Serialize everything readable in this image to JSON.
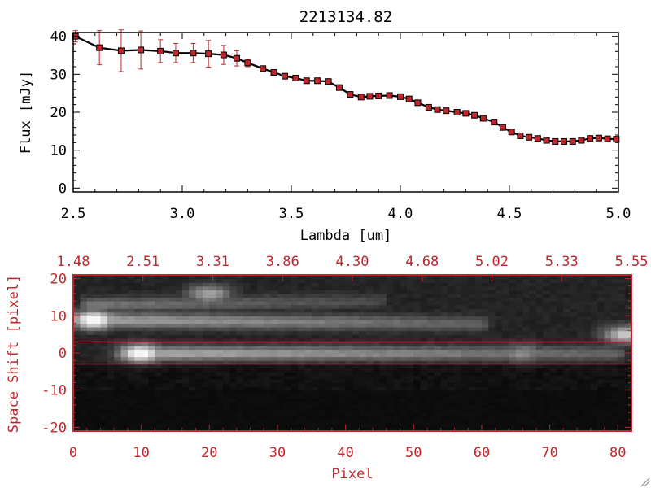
{
  "chart_data": [
    {
      "type": "line",
      "title": "2213134.82",
      "xlabel": "Lambda [um]",
      "ylabel": "Flux [mJy]",
      "xlim": [
        2.5,
        5.0
      ],
      "ylim": [
        -1,
        41
      ],
      "x_ticks": [
        "2.5",
        "3.0",
        "3.5",
        "4.0",
        "4.5",
        "5.0"
      ],
      "y_ticks": [
        "0",
        "10",
        "20",
        "30",
        "40"
      ],
      "line_color": "#000000",
      "marker_color": "#c0272d",
      "errorbar_color": "#c0272d",
      "series": [
        {
          "x": [
            2.51,
            2.62,
            2.72,
            2.81,
            2.9,
            2.97,
            3.05,
            3.12,
            3.19,
            3.25,
            3.3,
            3.37,
            3.42,
            3.47,
            3.52,
            3.57,
            3.62,
            3.67,
            3.72,
            3.77,
            3.82,
            3.86,
            3.9,
            3.95,
            4.0,
            4.04,
            4.08,
            4.13,
            4.17,
            4.21,
            4.26,
            4.3,
            4.34,
            4.38,
            4.43,
            4.47,
            4.51,
            4.55,
            4.59,
            4.63,
            4.67,
            4.71,
            4.75,
            4.79,
            4.83,
            4.87,
            4.91,
            4.95,
            4.99
          ],
          "y": [
            40.0,
            37.0,
            36.2,
            36.4,
            36.1,
            35.6,
            35.6,
            35.4,
            35.1,
            34.2,
            33.0,
            31.5,
            30.5,
            29.5,
            29.0,
            28.3,
            28.3,
            28.1,
            26.5,
            24.7,
            24.0,
            24.2,
            24.3,
            24.4,
            24.1,
            23.5,
            22.5,
            21.3,
            20.7,
            20.4,
            20.0,
            19.7,
            19.2,
            18.4,
            17.4,
            16.0,
            14.8,
            13.8,
            13.4,
            13.1,
            12.6,
            12.3,
            12.3,
            12.3,
            12.6,
            13.1,
            13.2,
            13.0,
            12.9
          ],
          "yerr": [
            1.5,
            4.5,
            5.5,
            5.0,
            3.0,
            2.5,
            2.5,
            3.5,
            2.5,
            2.0,
            1.0,
            0.8,
            0.6,
            0.5,
            0.5,
            0.5,
            0.5,
            0.5,
            0.5,
            0.5,
            0.5,
            0.5,
            0.5,
            0.5,
            0.5,
            0.5,
            0.5,
            0.5,
            0.5,
            0.5,
            0.5,
            0.5,
            0.5,
            0.5,
            0.5,
            0.5,
            0.5,
            0.5,
            0.5,
            0.5,
            0.5,
            0.5,
            0.5,
            0.5,
            0.5,
            0.5,
            0.5,
            0.5,
            0.5
          ]
        }
      ]
    },
    {
      "type": "heatmap",
      "xlabel": "Pixel",
      "ylabel": "Space Shift [pixel]",
      "xlim": [
        0,
        82
      ],
      "ylim": [
        -21,
        21
      ],
      "x_ticks": [
        "0",
        "10",
        "20",
        "30",
        "40",
        "50",
        "60",
        "70",
        "80"
      ],
      "y_ticks": [
        "-20",
        "-10",
        "0",
        "10",
        "20"
      ],
      "top_ticks": [
        "1.48",
        "2.51",
        "3.31",
        "3.86",
        "4.30",
        "4.68",
        "5.02",
        "5.33",
        "5.55"
      ],
      "extraction_window": [
        -3,
        3
      ],
      "colormap": "grayscale",
      "accent_color": "#c0272d",
      "blobs": [
        {
          "x": 3,
          "y": 9,
          "intensity": 1.0
        },
        {
          "x": 10,
          "y": 0,
          "intensity": 1.0
        },
        {
          "x": 20,
          "y": 16,
          "intensity": 0.55
        },
        {
          "x": 66,
          "y": 0,
          "intensity": 0.45
        },
        {
          "x": 81,
          "y": 5,
          "intensity": 0.7
        }
      ],
      "traces": [
        {
          "x0": 2,
          "x1": 60,
          "y0": 9,
          "y1": 8,
          "intensity": 0.55
        },
        {
          "x0": 8,
          "x1": 80,
          "y0": 0,
          "y1": 0,
          "intensity": 0.6
        },
        {
          "x0": 2,
          "x1": 45,
          "y0": 13,
          "y1": 14,
          "intensity": 0.35
        }
      ]
    }
  ]
}
